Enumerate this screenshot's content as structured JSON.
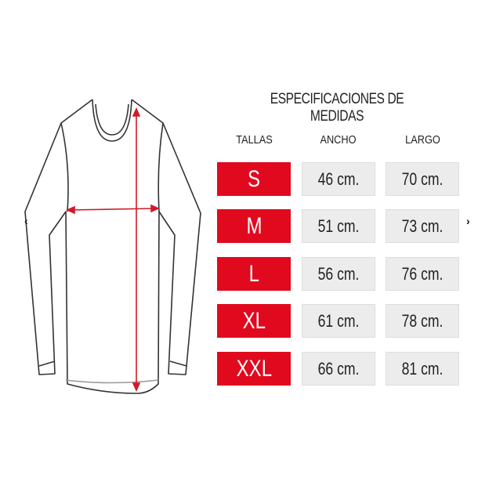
{
  "title": "ESPECIFICACIONES DE MEDIDAS",
  "headers": {
    "size": "TALLAS",
    "width": "ANCHO",
    "length": "LARGO"
  },
  "rows": [
    {
      "size": "S",
      "width": "46 cm.",
      "length": "70 cm."
    },
    {
      "size": "M",
      "width": "51 cm.",
      "length": "73 cm."
    },
    {
      "size": "L",
      "width": "56 cm.",
      "length": "76 cm."
    },
    {
      "size": "XL",
      "width": "61 cm.",
      "length": "78 cm."
    },
    {
      "size": "XXL",
      "width": "66 cm.",
      "length": "81 cm."
    }
  ],
  "nav": {
    "prev": "‹",
    "next": "›"
  },
  "colors": {
    "accent": "#e1091e",
    "cell": "#ececec"
  }
}
